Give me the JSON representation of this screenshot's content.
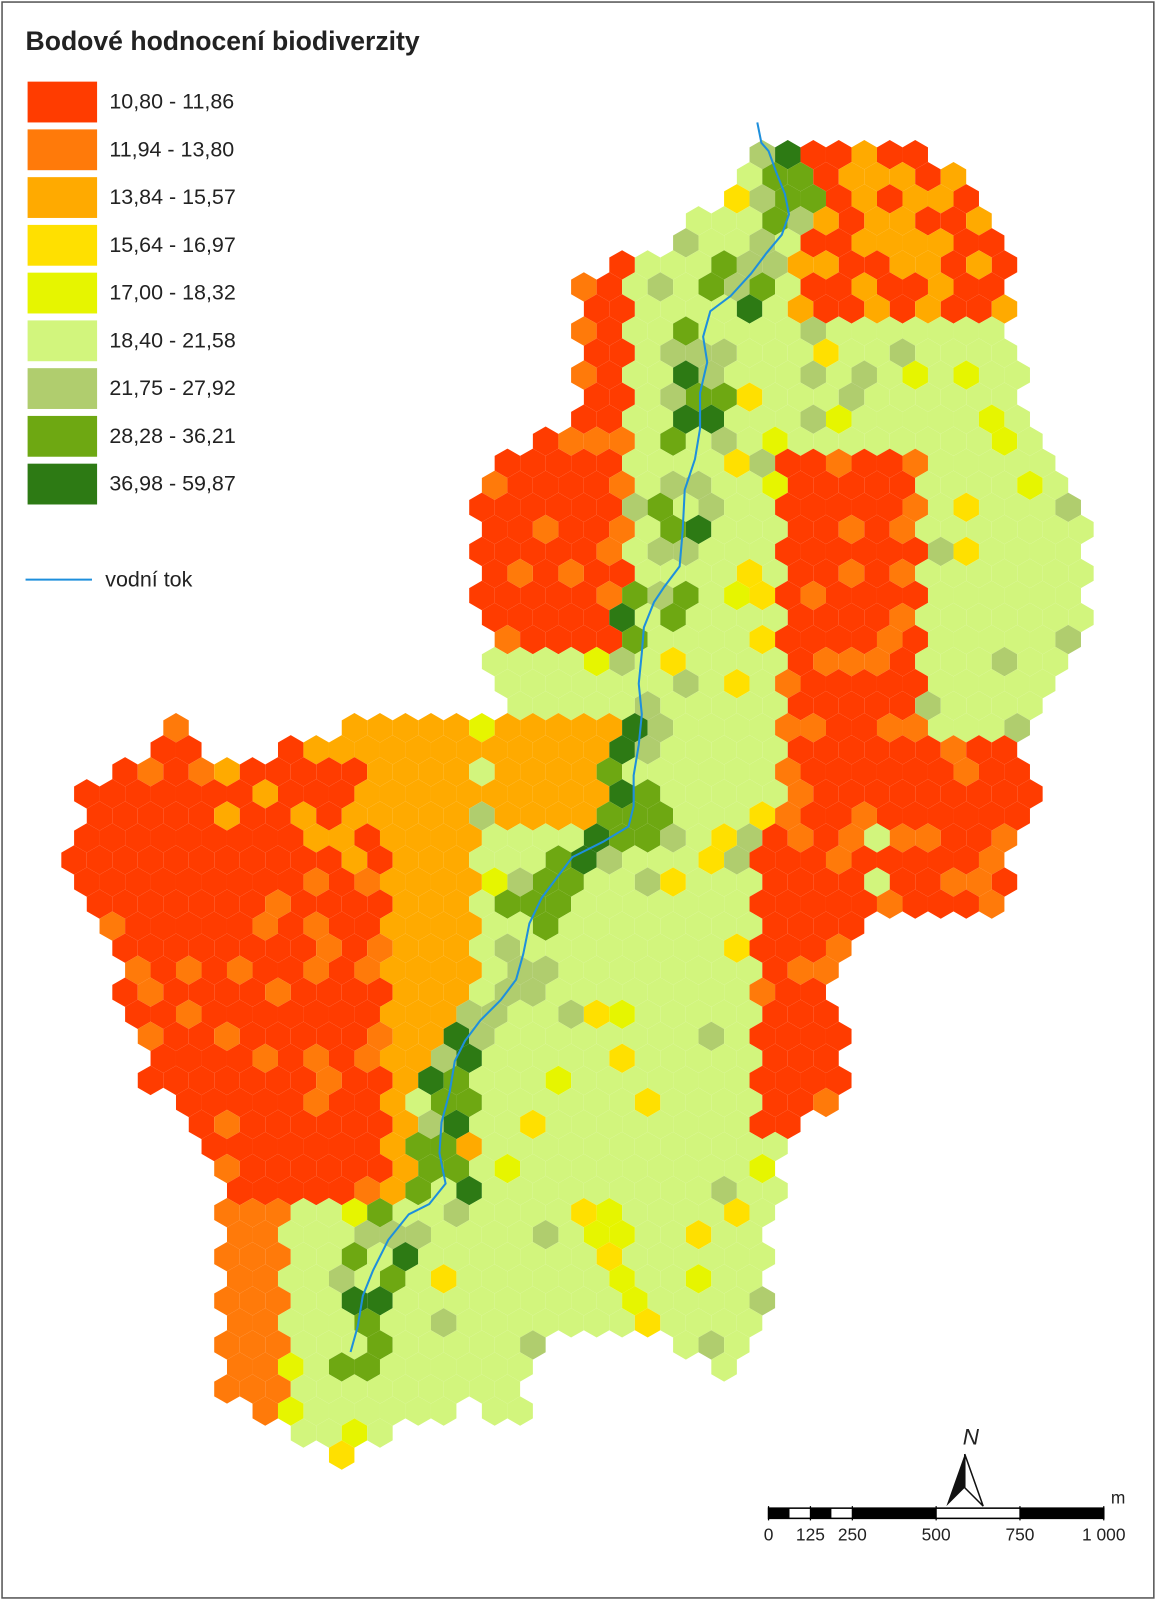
{
  "title": "Bodové hodnocení biodiverzity",
  "legend": {
    "items": [
      {
        "label": "10,80 - 11,86",
        "color": "#ff3c00"
      },
      {
        "label": "11,94 - 13,80",
        "color": "#ff7a0a"
      },
      {
        "label": "13,84 - 15,57",
        "color": "#ffaa00"
      },
      {
        "label": "15,64 - 16,97",
        "color": "#ffe000"
      },
      {
        "label": "17,00 - 18,32",
        "color": "#e6f500"
      },
      {
        "label": "18,40 - 21,58",
        "color": "#d2f57d"
      },
      {
        "label": "21,75 - 27,92",
        "color": "#b0cd6e"
      },
      {
        "label": "28,28 - 36,21",
        "color": "#6ea812"
      },
      {
        "label": "36,98 - 59,87",
        "color": "#2d7a14"
      }
    ]
  },
  "river_label": "vodní tok",
  "river_color": "#1e8fdc",
  "north_label": "N",
  "scale_bar": {
    "ticks": [
      0,
      125,
      250,
      500,
      750,
      {
        "value": 1000,
        "label": "1 000"
      }
    ],
    "unit": "m"
  }
}
